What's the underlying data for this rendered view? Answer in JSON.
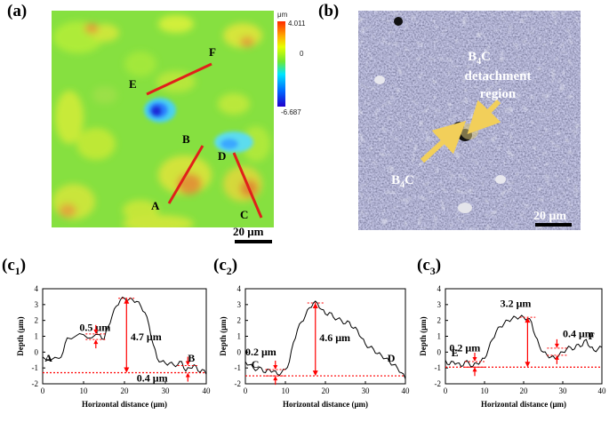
{
  "panel_a": {
    "label": "(a)",
    "colorbar": {
      "unit": "μm",
      "max": "4.011",
      "mid": "0",
      "min": "-6.687"
    },
    "line_labels": [
      "A",
      "B",
      "C",
      "D",
      "E",
      "F"
    ],
    "scale_bar": "20 μm"
  },
  "panel_b": {
    "label": "(b)",
    "annotation_lines": [
      "B4C",
      "detachment",
      "region"
    ],
    "b4c_label": "B4C",
    "scale_bar": "20 μm"
  },
  "panels_c": [
    {
      "label": "(c1)",
      "start_label": "A",
      "end_label": "B",
      "annotations": [
        "0.5 μm",
        "4.7 μm",
        "0.4 μm"
      ]
    },
    {
      "label": "(c2)",
      "start_label": "C",
      "end_label": "D",
      "annotations": [
        "0.2 μm",
        "4.6 μm"
      ]
    },
    {
      "label": "(c3)",
      "start_label": "E",
      "end_label": "F",
      "annotations": [
        "0.2 μm",
        "3.2 μm",
        "0.4 μm"
      ]
    }
  ],
  "chart_data": [
    {
      "type": "line",
      "title": "(c1)",
      "xlabel": "Horizontal distance (μm)",
      "ylabel": "Depth (μm)",
      "xlim": [
        0,
        40
      ],
      "ylim": [
        -2,
        4
      ],
      "xticks": [
        "0",
        "10",
        "20",
        "30",
        "40"
      ],
      "yticks": [
        "-2",
        "-1",
        "0",
        "1",
        "2",
        "3",
        "4"
      ],
      "series": [
        {
          "name": "A-B",
          "x": [
            0,
            2,
            4,
            5,
            6,
            8,
            10,
            12,
            14,
            15,
            16,
            17,
            18,
            19,
            20,
            21,
            22,
            23,
            24,
            25,
            26,
            27,
            28,
            29,
            30,
            31,
            32,
            33,
            34,
            35,
            36,
            37,
            38,
            39,
            40
          ],
          "y": [
            -0.3,
            -0.5,
            -0.4,
            0.0,
            0.9,
            1.0,
            1.1,
            0.9,
            1.1,
            0.8,
            1.6,
            2.3,
            2.9,
            3.3,
            3.4,
            3.3,
            3.3,
            3.2,
            2.9,
            2.5,
            1.7,
            0.5,
            -0.4,
            -0.6,
            -0.7,
            -0.7,
            -0.8,
            -0.8,
            -0.6,
            -1.2,
            -1.0,
            -0.8,
            -1.2,
            -1.1,
            -1.4
          ]
        }
      ],
      "baseline": -1.3
    },
    {
      "type": "line",
      "title": "(c2)",
      "xlabel": "Horizontal distance (μm)",
      "ylabel": "Depth (μm)",
      "xlim": [
        0,
        40
      ],
      "ylim": [
        -2,
        4
      ],
      "xticks": [
        "0",
        "10",
        "20",
        "30",
        "40"
      ],
      "yticks": [
        "-2",
        "-1",
        "0",
        "1",
        "2",
        "3",
        "4"
      ],
      "series": [
        {
          "name": "C-D",
          "x": [
            0,
            1,
            2,
            3,
            4,
            5,
            6,
            7,
            8,
            9,
            10,
            11,
            12,
            13,
            14,
            15,
            16,
            17,
            18,
            19,
            20,
            21,
            22,
            23,
            24,
            25,
            26,
            27,
            28,
            29,
            30,
            31,
            32,
            33,
            34,
            35,
            36,
            37,
            38,
            39,
            40
          ],
          "y": [
            -0.6,
            -0.8,
            -1.0,
            -1.1,
            -1.0,
            -1.3,
            -1.1,
            -1.2,
            -1.4,
            -1.3,
            -1.1,
            -0.6,
            0.6,
            1.4,
            1.9,
            2.3,
            2.8,
            3.1,
            3.1,
            2.7,
            2.4,
            2.5,
            2.2,
            2.1,
            2.0,
            1.8,
            1.9,
            1.5,
            1.4,
            0.9,
            0.5,
            0.3,
            0.2,
            -0.1,
            -0.2,
            -0.4,
            -0.6,
            -0.8,
            -1.0,
            -1.3,
            -1.7
          ]
        }
      ],
      "baseline": -1.5
    },
    {
      "type": "line",
      "title": "(c3)",
      "xlabel": "Horizontal distance (μm)",
      "ylabel": "Depth (μm)",
      "xlim": [
        0,
        40
      ],
      "ylim": [
        -2,
        4
      ],
      "xticks": [
        "0",
        "10",
        "20",
        "30",
        "40"
      ],
      "yticks": [
        "-2",
        "-1",
        "0",
        "1",
        "2",
        "3",
        "4"
      ],
      "series": [
        {
          "name": "E-F",
          "x": [
            0,
            1,
            2,
            3,
            4,
            5,
            6,
            7,
            8,
            9,
            10,
            11,
            12,
            13,
            14,
            15,
            16,
            17,
            18,
            19,
            20,
            21,
            22,
            23,
            24,
            25,
            26,
            27,
            28,
            29,
            30,
            31,
            32,
            33,
            34,
            35,
            36,
            37,
            38,
            39,
            40
          ],
          "y": [
            -0.5,
            -0.8,
            -0.6,
            -0.7,
            -0.9,
            -0.6,
            -0.7,
            -0.9,
            -0.7,
            -0.6,
            -0.4,
            0.2,
            0.8,
            1.3,
            1.6,
            1.8,
            2.0,
            2.1,
            2.2,
            2.2,
            2.2,
            2.1,
            1.9,
            1.0,
            0.4,
            0.0,
            -0.2,
            -0.3,
            -0.4,
            -0.2,
            0.0,
            0.2,
            0.3,
            0.2,
            0.5,
            0.4,
            0.8,
            0.3,
            0.1,
            0.2,
            0.3
          ]
        }
      ],
      "baseline": -0.95
    }
  ],
  "colors": {
    "profile_line": "#000000",
    "annotation": "#ff0000",
    "arrow_b": "#f2cf5a",
    "line_overlay": "#e0201a"
  }
}
